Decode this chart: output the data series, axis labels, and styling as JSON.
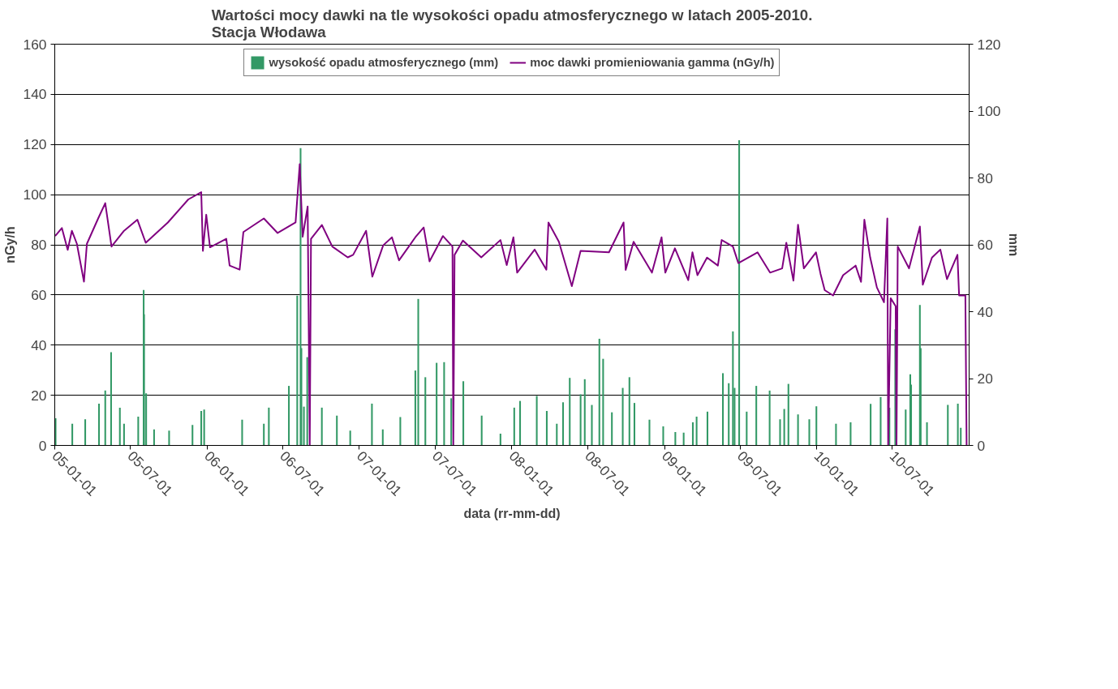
{
  "chart_data": {
    "type": "bar",
    "title": "Wartości mocy dawki na tle wysokości opadu atmosferycznego w latach 2005-2010.\nStacja Włodawa",
    "xlabel": "data (rr-mm-dd)",
    "ylabel": "nGy/h",
    "y2label": "mm",
    "xlim": [
      "2005-01-01",
      "2011-01-01"
    ],
    "xticks": [
      {
        "value": "2005-01-01",
        "label": "05-01-01"
      },
      {
        "value": "2005-07-01",
        "label": "05-07-01"
      },
      {
        "value": "2006-01-01",
        "label": "06-01-01"
      },
      {
        "value": "2006-07-01",
        "label": "06-07-01"
      },
      {
        "value": "2007-01-01",
        "label": "07-01-01"
      },
      {
        "value": "2007-07-01",
        "label": "07-07-01"
      },
      {
        "value": "2008-01-01",
        "label": "08-01-01"
      },
      {
        "value": "2008-07-01",
        "label": "08-07-01"
      },
      {
        "value": "2009-01-01",
        "label": "09-01-01"
      },
      {
        "value": "2009-07-01",
        "label": "09-07-01"
      },
      {
        "value": "2010-01-01",
        "label": "10-01-01"
      },
      {
        "value": "2010-07-01",
        "label": "10-07-01"
      }
    ],
    "ylim": [
      0,
      160
    ],
    "yticks": [
      0,
      20,
      40,
      60,
      80,
      100,
      120,
      140,
      160
    ],
    "y2lim": [
      0,
      120
    ],
    "y2ticks": [
      0,
      20,
      40,
      60,
      80,
      100,
      120
    ],
    "grid": "y",
    "legend": "top",
    "series": [
      {
        "name": "wysokość opadu atmosferycznego (mm)",
        "axis": "y2",
        "color": "#339966",
        "x": [
          "2005-01-03",
          "2005-02-12",
          "2005-03-15",
          "2005-04-17",
          "2005-05-02",
          "2005-05-16",
          "2005-06-06",
          "2005-06-16",
          "2005-07-20",
          "2005-08-02",
          "2005-08-03",
          "2005-08-08",
          "2005-08-27",
          "2005-10-02",
          "2005-11-27",
          "2005-12-18",
          "2005-12-25",
          "2006-03-26",
          "2006-05-17",
          "2006-05-29",
          "2006-07-16",
          "2006-08-05",
          "2006-08-13",
          "2006-08-15",
          "2006-08-21",
          "2006-08-29",
          "2006-10-03",
          "2006-11-08",
          "2006-12-10",
          "2007-01-31",
          "2007-02-26",
          "2007-04-09",
          "2007-05-15",
          "2007-05-22",
          "2007-06-08",
          "2007-07-05",
          "2007-07-23",
          "2007-08-09",
          "2007-09-07",
          "2007-10-21",
          "2007-12-05",
          "2008-01-07",
          "2008-01-21",
          "2008-03-01",
          "2008-03-25",
          "2008-04-18",
          "2008-05-03",
          "2008-05-19",
          "2008-06-14",
          "2008-06-24",
          "2008-07-11",
          "2008-07-29",
          "2008-08-07",
          "2008-08-28",
          "2008-09-23",
          "2008-10-09",
          "2008-10-21",
          "2008-11-26",
          "2008-12-29",
          "2009-01-27",
          "2009-02-16",
          "2009-03-10",
          "2009-03-19",
          "2009-04-14",
          "2009-05-21",
          "2009-06-04",
          "2009-06-14",
          "2009-06-18",
          "2009-06-29",
          "2009-07-17",
          "2009-08-09",
          "2009-09-10",
          "2009-10-05",
          "2009-10-15",
          "2009-10-25",
          "2009-11-17",
          "2009-12-14",
          "2009-12-31",
          "2010-02-16",
          "2010-03-23",
          "2010-05-10",
          "2010-06-03",
          "2010-06-24",
          "2010-07-08",
          "2010-08-02",
          "2010-08-13",
          "2010-08-15",
          "2010-09-05",
          "2010-09-07",
          "2010-09-22",
          "2010-11-11",
          "2010-12-05",
          "2010-12-12"
        ],
        "values": [
          8.1,
          6.5,
          7.8,
          12.5,
          16.4,
          27.9,
          11.3,
          6.5,
          8.6,
          46.5,
          39.2,
          15.6,
          4.8,
          4.4,
          6.1,
          10.3,
          10.7,
          7.7,
          6.5,
          11.3,
          17.8,
          44.8,
          88.9,
          29.1,
          11.6,
          26.4,
          11.3,
          8.9,
          4.4,
          12.5,
          4.8,
          8.5,
          22.4,
          43.8,
          20.4,
          24.7,
          24.9,
          14.1,
          19.2,
          8.9,
          3.5,
          11.3,
          13.3,
          14.8,
          10.3,
          6.5,
          12.9,
          20.2,
          15.3,
          19.8,
          12.1,
          31.9,
          25.9,
          9.9,
          17.2,
          20.4,
          12.7,
          7.7,
          5.7,
          4.0,
          3.8,
          6.9,
          8.6,
          10.1,
          21.6,
          18.6,
          34.1,
          17.2,
          91.3,
          10.1,
          17.8,
          16.4,
          7.8,
          10.9,
          18.4,
          9.3,
          7.8,
          11.7,
          6.5,
          6.9,
          12.4,
          14.5,
          11.3,
          34.7,
          10.7,
          21.3,
          18.2,
          42,
          29.1,
          6.9,
          12.1,
          12.5,
          5.3
        ]
      },
      {
        "name": "moc dawki promieniowania gamma (nGy/h)",
        "type": "line",
        "color": "#800080",
        "x": [
          "2005-01-02",
          "2005-01-18",
          "2005-02-01",
          "2005-02-11",
          "2005-02-23",
          "2005-03-12",
          "2005-03-19",
          "2005-04-15",
          "2005-05-02",
          "2005-05-17",
          "2005-06-16",
          "2005-07-18",
          "2005-08-07",
          "2005-09-29",
          "2005-11-17",
          "2005-12-18",
          "2005-12-22",
          "2005-12-30",
          "2006-01-08",
          "2006-02-16",
          "2006-02-24",
          "2006-03-20",
          "2006-03-29",
          "2006-05-17",
          "2006-06-19",
          "2006-08-01",
          "2006-08-11",
          "2006-08-18",
          "2006-08-30",
          "2006-09-04",
          "2006-09-07",
          "2006-10-03",
          "2006-10-28",
          "2006-12-04",
          "2006-12-17",
          "2007-01-17",
          "2007-02-01",
          "2007-02-27",
          "2007-03-20",
          "2007-04-06",
          "2007-05-15",
          "2007-06-04",
          "2007-06-18",
          "2007-07-20",
          "2007-08-12",
          "2007-08-14",
          "2007-08-17",
          "2007-09-06",
          "2007-10-20",
          "2007-12-05",
          "2007-12-20",
          "2008-01-05",
          "2008-01-14",
          "2008-02-25",
          "2008-03-24",
          "2008-03-29",
          "2008-04-23",
          "2008-05-24",
          "2008-06-14",
          "2008-08-21",
          "2008-09-25",
          "2008-09-30",
          "2008-10-19",
          "2008-12-02",
          "2008-12-25",
          "2009-01-03",
          "2009-01-26",
          "2009-02-27",
          "2009-03-09",
          "2009-03-21",
          "2009-04-13",
          "2009-05-09",
          "2009-05-18",
          "2009-06-14",
          "2009-06-27",
          "2009-08-12",
          "2009-09-11",
          "2009-10-10",
          "2009-10-20",
          "2009-11-06",
          "2009-11-17",
          "2009-12-01",
          "2009-12-30",
          "2010-01-10",
          "2010-01-20",
          "2010-02-09",
          "2010-03-05",
          "2010-04-04",
          "2010-04-17",
          "2010-04-25",
          "2010-05-09",
          "2010-05-25",
          "2010-06-11",
          "2010-06-19",
          "2010-06-21",
          "2010-06-27",
          "2010-07-09",
          "2010-07-11",
          "2010-07-14",
          "2010-08-10",
          "2010-09-05",
          "2010-09-12",
          "2010-10-04",
          "2010-10-24",
          "2010-11-09",
          "2010-12-04",
          "2010-12-08",
          "2010-12-23",
          "2010-12-26"
        ],
        "values": [
          83.5,
          86.7,
          78,
          85.6,
          80.4,
          65.3,
          80.4,
          90.5,
          96.6,
          79.3,
          85.6,
          90,
          80.8,
          88.9,
          98.1,
          101,
          77.6,
          92,
          79,
          82.4,
          71.7,
          70.1,
          85.1,
          90.5,
          84.7,
          88.9,
          112.2,
          83.2,
          95.3,
          0,
          82.4,
          87.9,
          79.3,
          75,
          76,
          85.6,
          67.3,
          79.8,
          83,
          73.8,
          83,
          86.9,
          73.4,
          83.5,
          79.3,
          0,
          76,
          81.7,
          75,
          81.9,
          71.9,
          83,
          68.9,
          78.1,
          70.1,
          88.9,
          81.2,
          63.5,
          77.6,
          77,
          88.9,
          70,
          81.2,
          68.9,
          83,
          68.9,
          78.6,
          65.9,
          77,
          67.9,
          74.9,
          71.7,
          81.9,
          79.3,
          72.7,
          77,
          68.9,
          70.6,
          80.8,
          65.7,
          88,
          70.6,
          77,
          68.4,
          61.9,
          59.8,
          67.9,
          71.7,
          65.2,
          90,
          74.9,
          63,
          57.1,
          90.5,
          0,
          58.7,
          55.5,
          0,
          79.3,
          70.6,
          87.3,
          64.1,
          74.9,
          78.1,
          66.3,
          76,
          59.8,
          59.8,
          0
        ]
      }
    ]
  }
}
